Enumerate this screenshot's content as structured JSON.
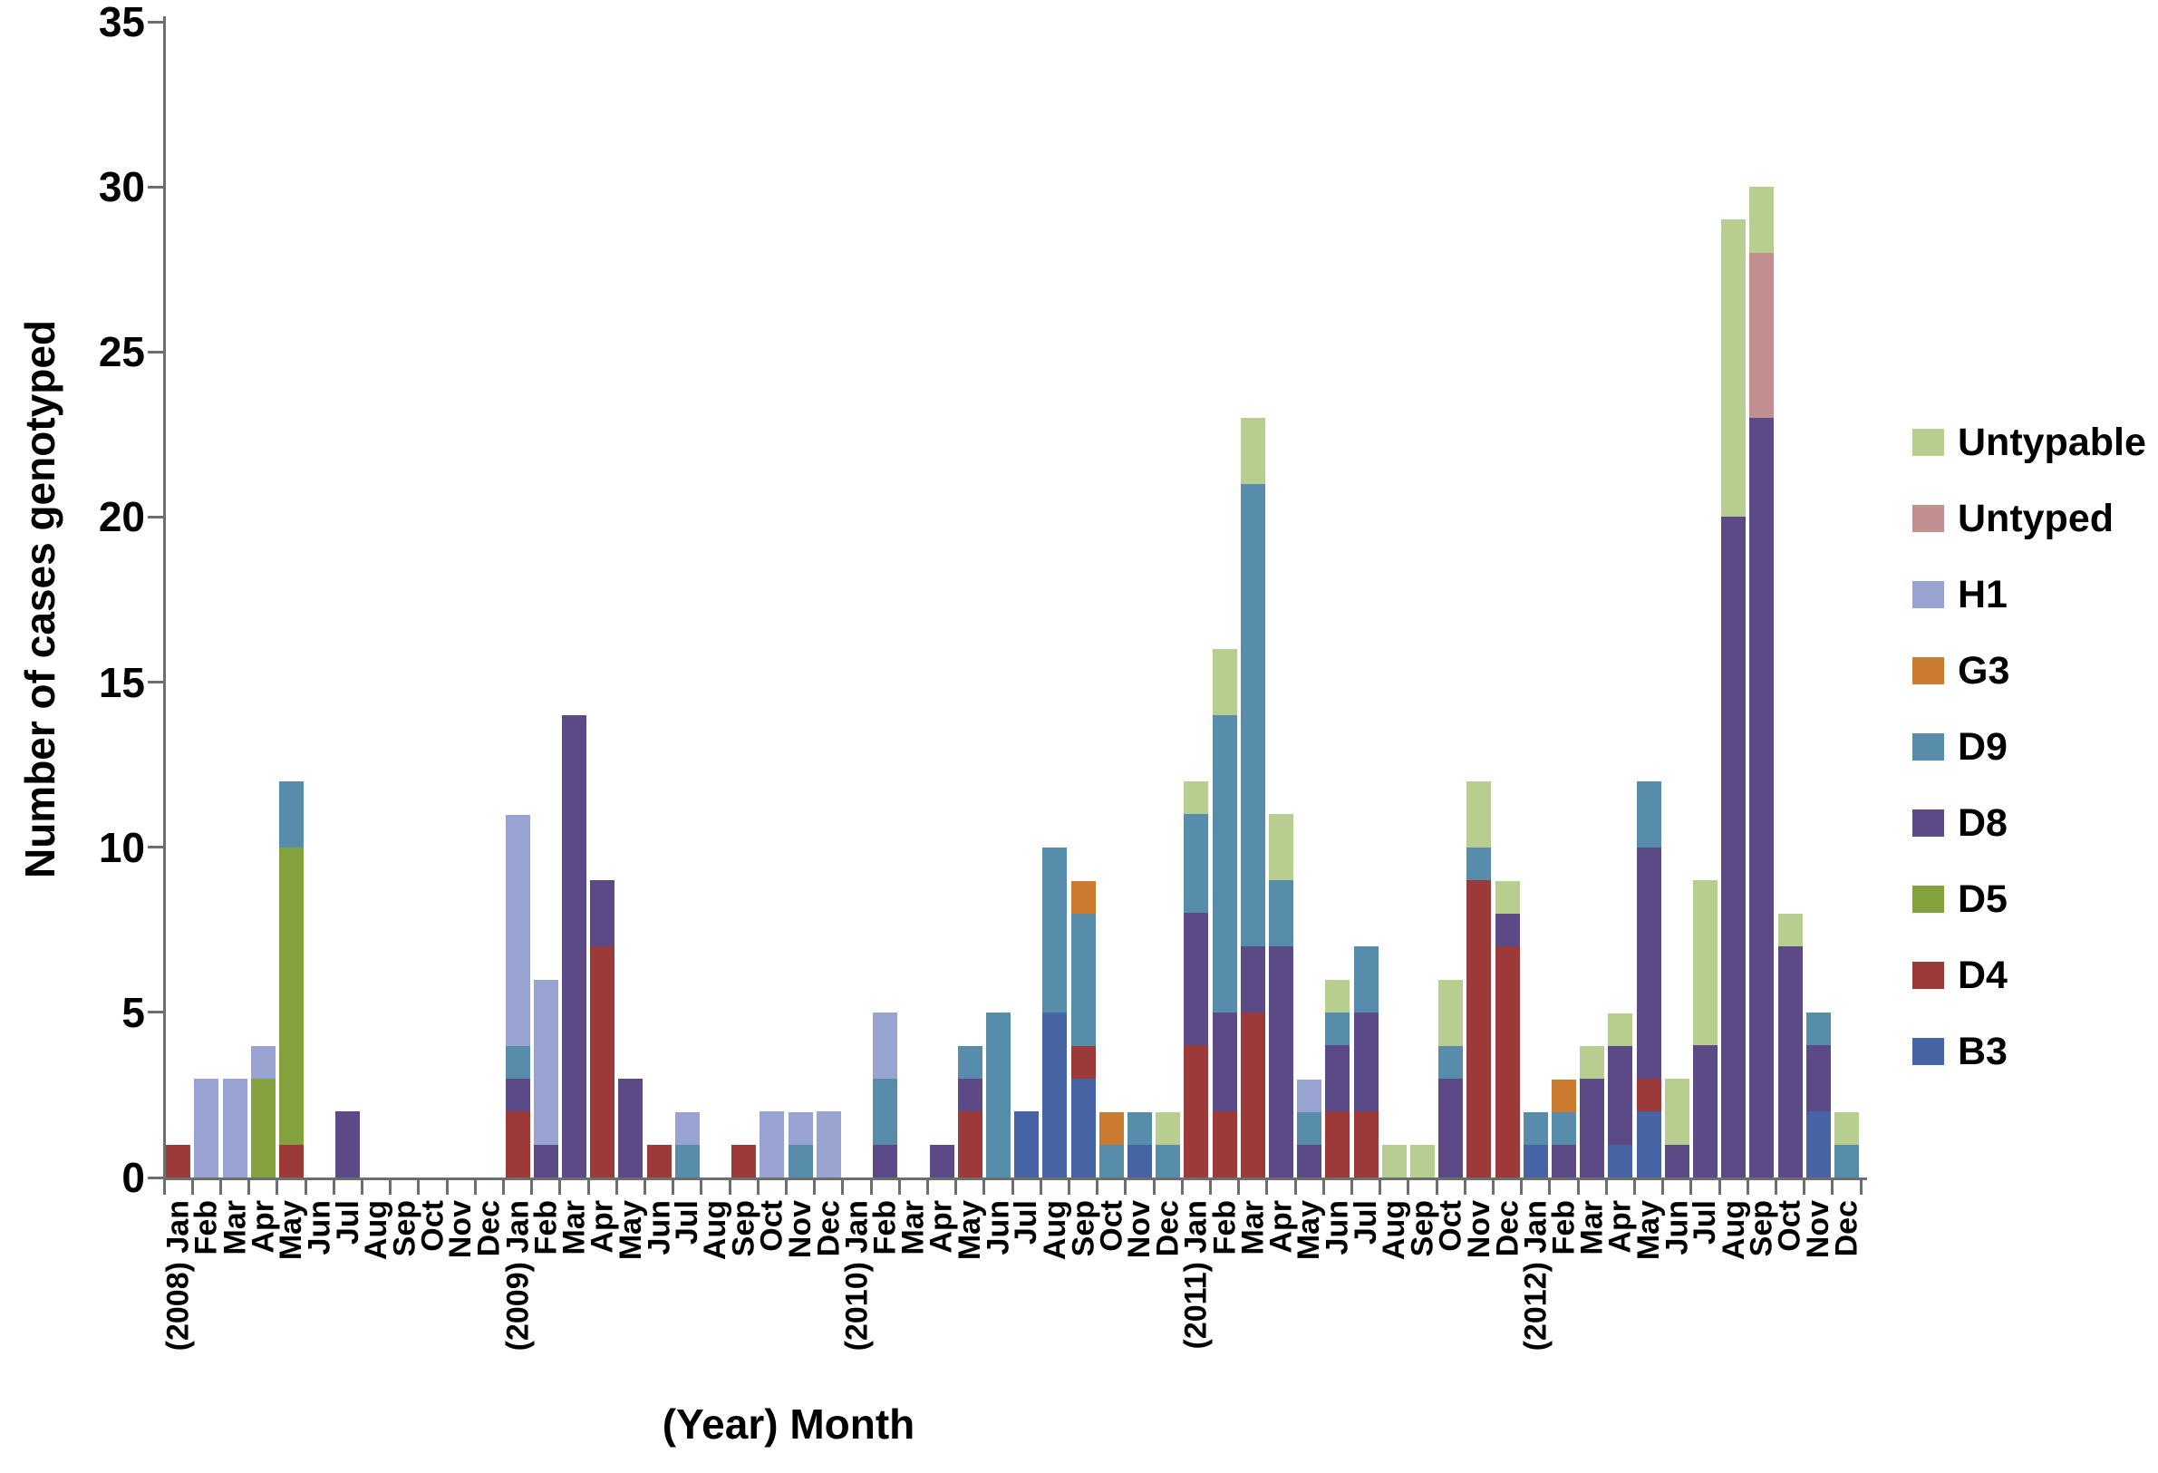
{
  "figure": {
    "y_axis_title": "Number of cases genotyped",
    "x_axis_title": "(Year) Month"
  },
  "chart_data": {
    "type": "bar",
    "stacked": true,
    "title": "",
    "xlabel": "(Year) Month",
    "ylabel": "Number of cases genotyped",
    "ylim": [
      0,
      35
    ],
    "yticks": [
      0,
      5,
      10,
      15,
      20,
      25,
      30,
      35
    ],
    "grid": false,
    "legend_position": "right",
    "categories": [
      "(2008) Jan",
      "Feb",
      "Mar",
      "Apr",
      "May",
      "Jun",
      "Jul",
      "Aug",
      "Sep",
      "Oct",
      "Nov",
      "Dec",
      "(2009) Jan",
      "Feb",
      "Mar",
      "Apr",
      "May",
      "Jun",
      "Jul",
      "Aug",
      "Sep",
      "Oct",
      "Nov",
      "Dec",
      "(2010) Jan",
      "Feb",
      "Mar",
      "Apr",
      "May",
      "Jun",
      "Jul",
      "Aug",
      "Sep",
      "Oct",
      "Nov",
      "Dec",
      "(2011) Jan",
      "Feb",
      "Mar",
      "Apr",
      "May",
      "Jun",
      "Jul",
      "Aug",
      "Sep",
      "Oct",
      "Nov",
      "Dec",
      "(2012) Jan",
      "Feb",
      "Mar",
      "Apr",
      "May",
      "Jun",
      "Jul",
      "Aug",
      "Sep",
      "Oct",
      "Nov",
      "Dec"
    ],
    "series": [
      {
        "name": "B3",
        "color": "#4663a4",
        "values": [
          0,
          0,
          0,
          0,
          0,
          0,
          0,
          0,
          0,
          0,
          0,
          0,
          0,
          0,
          0,
          0,
          0,
          0,
          0,
          0,
          0,
          0,
          0,
          0,
          0,
          0,
          0,
          0,
          0,
          0,
          2,
          5,
          3,
          0,
          1,
          0,
          0,
          0,
          0,
          0,
          0,
          0,
          0,
          0,
          0,
          0,
          0,
          0,
          1,
          0,
          0,
          1,
          2,
          0,
          0,
          0,
          0,
          0,
          2,
          0
        ]
      },
      {
        "name": "D4",
        "color": "#9c3a39",
        "values": [
          1,
          0,
          0,
          0,
          1,
          0,
          0,
          0,
          0,
          0,
          0,
          0,
          2,
          0,
          0,
          7,
          0,
          1,
          0,
          0,
          1,
          0,
          0,
          0,
          0,
          0,
          0,
          0,
          2,
          0,
          0,
          0,
          1,
          0,
          0,
          0,
          4,
          2,
          5,
          0,
          0,
          2,
          2,
          0,
          0,
          0,
          9,
          7,
          0,
          0,
          0,
          0,
          1,
          0,
          0,
          0,
          0,
          0,
          0,
          0
        ]
      },
      {
        "name": "D5",
        "color": "#83a23d",
        "values": [
          0,
          0,
          0,
          3,
          9,
          0,
          0,
          0,
          0,
          0,
          0,
          0,
          0,
          0,
          0,
          0,
          0,
          0,
          0,
          0,
          0,
          0,
          0,
          0,
          0,
          0,
          0,
          0,
          0,
          0,
          0,
          0,
          0,
          0,
          0,
          0,
          0,
          0,
          0,
          0,
          0,
          0,
          0,
          0,
          0,
          0,
          0,
          0,
          0,
          0,
          0,
          0,
          0,
          0,
          0,
          0,
          0,
          0,
          0,
          0
        ]
      },
      {
        "name": "D8",
        "color": "#5c4a87",
        "values": [
          0,
          0,
          0,
          0,
          0,
          0,
          2,
          0,
          0,
          0,
          0,
          0,
          1,
          1,
          14,
          2,
          3,
          0,
          0,
          0,
          0,
          0,
          0,
          0,
          0,
          1,
          0,
          1,
          1,
          0,
          0,
          0,
          0,
          0,
          0,
          0,
          4,
          3,
          2,
          7,
          1,
          2,
          3,
          0,
          0,
          3,
          0,
          1,
          0,
          1,
          3,
          3,
          7,
          1,
          4,
          20,
          23,
          7,
          2,
          0
        ]
      },
      {
        "name": "D9",
        "color": "#578caa",
        "values": [
          0,
          0,
          0,
          0,
          2,
          0,
          0,
          0,
          0,
          0,
          0,
          0,
          1,
          0,
          0,
          0,
          0,
          0,
          1,
          0,
          0,
          0,
          1,
          0,
          0,
          2,
          0,
          0,
          1,
          5,
          0,
          5,
          4,
          1,
          1,
          1,
          3,
          9,
          14,
          2,
          1,
          1,
          2,
          0,
          0,
          1,
          1,
          0,
          1,
          1,
          0,
          0,
          2,
          0,
          0,
          0,
          0,
          0,
          1,
          1
        ]
      },
      {
        "name": "G3",
        "color": "#cb7b30",
        "values": [
          0,
          0,
          0,
          0,
          0,
          0,
          0,
          0,
          0,
          0,
          0,
          0,
          0,
          0,
          0,
          0,
          0,
          0,
          0,
          0,
          0,
          0,
          0,
          0,
          0,
          0,
          0,
          0,
          0,
          0,
          0,
          0,
          1,
          1,
          0,
          0,
          0,
          0,
          0,
          0,
          0,
          0,
          0,
          0,
          0,
          0,
          0,
          0,
          0,
          1,
          0,
          0,
          0,
          0,
          0,
          0,
          0,
          0,
          0,
          0
        ]
      },
      {
        "name": "H1",
        "color": "#99a3d2",
        "values": [
          0,
          3,
          3,
          1,
          0,
          0,
          0,
          0,
          0,
          0,
          0,
          0,
          7,
          5,
          0,
          0,
          0,
          0,
          1,
          0,
          0,
          2,
          1,
          2,
          0,
          2,
          0,
          0,
          0,
          0,
          0,
          0,
          0,
          0,
          0,
          0,
          0,
          0,
          0,
          0,
          1,
          0,
          0,
          0,
          0,
          0,
          0,
          0,
          0,
          0,
          0,
          0,
          0,
          0,
          0,
          0,
          0,
          0,
          0,
          0
        ]
      },
      {
        "name": "Untyped",
        "color": "#c18f8f",
        "values": [
          0,
          0,
          0,
          0,
          0,
          0,
          0,
          0,
          0,
          0,
          0,
          0,
          0,
          0,
          0,
          0,
          0,
          0,
          0,
          0,
          0,
          0,
          0,
          0,
          0,
          0,
          0,
          0,
          0,
          0,
          0,
          0,
          0,
          0,
          0,
          0,
          0,
          0,
          0,
          0,
          0,
          0,
          0,
          0,
          0,
          0,
          0,
          0,
          0,
          0,
          0,
          0,
          0,
          0,
          0,
          0,
          5,
          0,
          0,
          0
        ]
      },
      {
        "name": "Untypable",
        "color": "#b8cd90",
        "values": [
          0,
          0,
          0,
          0,
          0,
          0,
          0,
          0,
          0,
          0,
          0,
          0,
          0,
          0,
          0,
          0,
          0,
          0,
          0,
          0,
          0,
          0,
          0,
          0,
          0,
          0,
          0,
          0,
          0,
          0,
          0,
          0,
          0,
          0,
          0,
          1,
          1,
          2,
          2,
          2,
          0,
          1,
          0,
          1,
          1,
          2,
          2,
          1,
          0,
          0,
          1,
          1,
          0,
          2,
          5,
          9,
          2,
          1,
          0,
          1
        ]
      }
    ],
    "legend_items_top_to_bottom": [
      {
        "label": "Untypable",
        "color": "#b8cd90"
      },
      {
        "label": "Untyped",
        "color": "#c18f8f"
      },
      {
        "label": "H1",
        "color": "#99a3d2"
      },
      {
        "label": "G3",
        "color": "#cb7b30"
      },
      {
        "label": "D9",
        "color": "#578caa"
      },
      {
        "label": "D8",
        "color": "#5c4a87"
      },
      {
        "label": "D5",
        "color": "#83a23d"
      },
      {
        "label": "D4",
        "color": "#9c3a39"
      },
      {
        "label": "B3",
        "color": "#4663a4"
      }
    ]
  }
}
